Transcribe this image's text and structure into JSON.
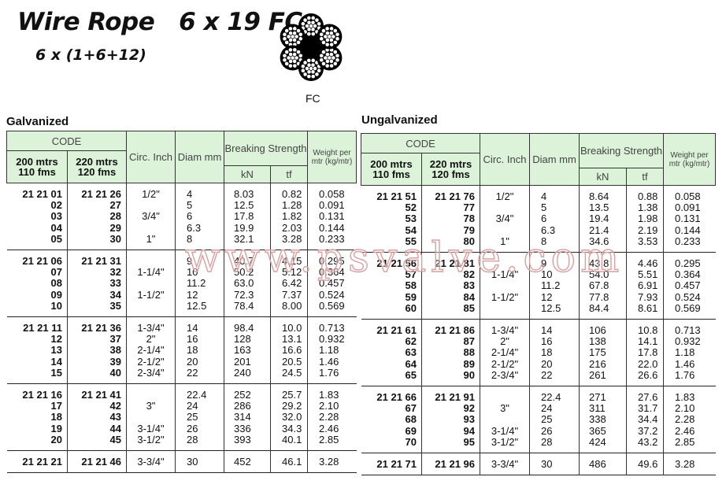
{
  "title": "Wire Rope   6 x 19 FC",
  "subtitle": "6 x (1+6+12)",
  "core_label": "FC",
  "watermark": "www.psvalve.com",
  "header": {
    "code": "CODE",
    "code_200": "200 mtrs 110 fms",
    "code_220": "220 mtrs 120 fms",
    "circ": "Circ. Inch",
    "diam": "Diam mm",
    "breaking": "Breaking Strength",
    "kn": "kN",
    "tf": "tf",
    "weight": "Weight per mtr (kg/mtr)"
  },
  "tables": [
    {
      "label": "Galvanized",
      "groups": [
        [
          [
            "21 21 01",
            "21 21 26",
            "1/2\"",
            "4",
            "8.03",
            "0.82",
            "0.058"
          ],
          [
            "02",
            "27",
            "",
            "5",
            "12.5",
            "1.28",
            "0.091"
          ],
          [
            "03",
            "28",
            "3/4\"",
            "6",
            "17.8",
            "1.82",
            "0.131"
          ],
          [
            "04",
            "29",
            "",
            "6.3",
            "19.9",
            "2.03",
            "0.144"
          ],
          [
            "05",
            "30",
            "1\"",
            "8",
            "32.1",
            "3.28",
            "0.233"
          ]
        ],
        [
          [
            "21 21 06",
            "21 21 31",
            "",
            "9",
            "40.7",
            "4.15",
            "0.295"
          ],
          [
            "07",
            "32",
            "1-1/4\"",
            "10",
            "50.2",
            "5.12",
            "0.364"
          ],
          [
            "08",
            "33",
            "",
            "11.2",
            "63.0",
            "6.42",
            "0.457"
          ],
          [
            "09",
            "34",
            "1-1/2\"",
            "12",
            "72.3",
            "7.37",
            "0.524"
          ],
          [
            "10",
            "35",
            "",
            "12.5",
            "78.4",
            "8.00",
            "0.569"
          ]
        ],
        [
          [
            "21 21 11",
            "21 21 36",
            "1-3/4\"",
            "14",
            "98.4",
            "10.0",
            "0.713"
          ],
          [
            "12",
            "37",
            "2\"",
            "16",
            "128",
            "13.1",
            "0.932"
          ],
          [
            "13",
            "38",
            "2-1/4\"",
            "18",
            "163",
            "16.6",
            "1.18"
          ],
          [
            "14",
            "39",
            "2-1/2\"",
            "20",
            "201",
            "20.5",
            "1.46"
          ],
          [
            "15",
            "40",
            "2-3/4\"",
            "22",
            "240",
            "24.5",
            "1.76"
          ]
        ],
        [
          [
            "21 21 16",
            "21 21 41",
            "",
            "22.4",
            "252",
            "25.7",
            "1.83"
          ],
          [
            "17",
            "42",
            "3\"",
            "24",
            "286",
            "29.2",
            "2.10"
          ],
          [
            "18",
            "43",
            "",
            "25",
            "314",
            "32.0",
            "2.28"
          ],
          [
            "19",
            "44",
            "3-1/4\"",
            "26",
            "336",
            "34.3",
            "2.46"
          ],
          [
            "20",
            "45",
            "3-1/2\"",
            "28",
            "393",
            "40.1",
            "2.85"
          ]
        ],
        [
          [
            "21 21 21",
            "21 21 46",
            "3-3/4\"",
            "30",
            "452",
            "46.1",
            "3.28"
          ]
        ]
      ]
    },
    {
      "label": "Ungalvanized",
      "groups": [
        [
          [
            "21 21 51",
            "21 21 76",
            "1/2\"",
            "4",
            "8.64",
            "0.88",
            "0.058"
          ],
          [
            "52",
            "77",
            "",
            "5",
            "13.5",
            "1.38",
            "0.091"
          ],
          [
            "53",
            "78",
            "3/4\"",
            "6",
            "19.4",
            "1.98",
            "0.131"
          ],
          [
            "54",
            "79",
            "",
            "6.3",
            "21.4",
            "2.19",
            "0.144"
          ],
          [
            "55",
            "80",
            "1\"",
            "8",
            "34.6",
            "3.53",
            "0.233"
          ]
        ],
        [
          [
            "21 21 56",
            "21 21 81",
            "",
            "9",
            "43.8",
            "4.46",
            "0.295"
          ],
          [
            "57",
            "82",
            "1-1/4\"",
            "10",
            "54.0",
            "5.51",
            "0.364"
          ],
          [
            "58",
            "83",
            "",
            "11.2",
            "67.8",
            "6.91",
            "0.457"
          ],
          [
            "59",
            "84",
            "1-1/2\"",
            "12",
            "77.8",
            "7.93",
            "0.524"
          ],
          [
            "60",
            "85",
            "",
            "12.5",
            "84.4",
            "8.61",
            "0.569"
          ]
        ],
        [
          [
            "21 21 61",
            "21 21 86",
            "1-3/4\"",
            "14",
            "106",
            "10.8",
            "0.713"
          ],
          [
            "62",
            "87",
            "2\"",
            "16",
            "138",
            "14.1",
            "0.932"
          ],
          [
            "63",
            "88",
            "2-1/4\"",
            "18",
            "175",
            "17.8",
            "1.18"
          ],
          [
            "64",
            "89",
            "2-1/2\"",
            "20",
            "216",
            "22.0",
            "1.46"
          ],
          [
            "65",
            "90",
            "2-3/4\"",
            "22",
            "261",
            "26.6",
            "1.76"
          ]
        ],
        [
          [
            "21 21 66",
            "21 21 91",
            "",
            "22.4",
            "271",
            "27.6",
            "1.83"
          ],
          [
            "67",
            "92",
            "3\"",
            "24",
            "311",
            "31.7",
            "2.10"
          ],
          [
            "68",
            "93",
            "",
            "25",
            "338",
            "34.4",
            "2.28"
          ],
          [
            "69",
            "94",
            "3-1/4\"",
            "26",
            "365",
            "37.2",
            "2.46"
          ],
          [
            "70",
            "95",
            "3-1/2\"",
            "28",
            "424",
            "43.2",
            "2.85"
          ]
        ],
        [
          [
            "21 21 71",
            "21 21 96",
            "3-3/4\"",
            "30",
            "486",
            "49.6",
            "3.28"
          ]
        ]
      ]
    }
  ],
  "colors": {
    "header_bg": "#dcf3da",
    "watermark": "#d9a0a0"
  }
}
